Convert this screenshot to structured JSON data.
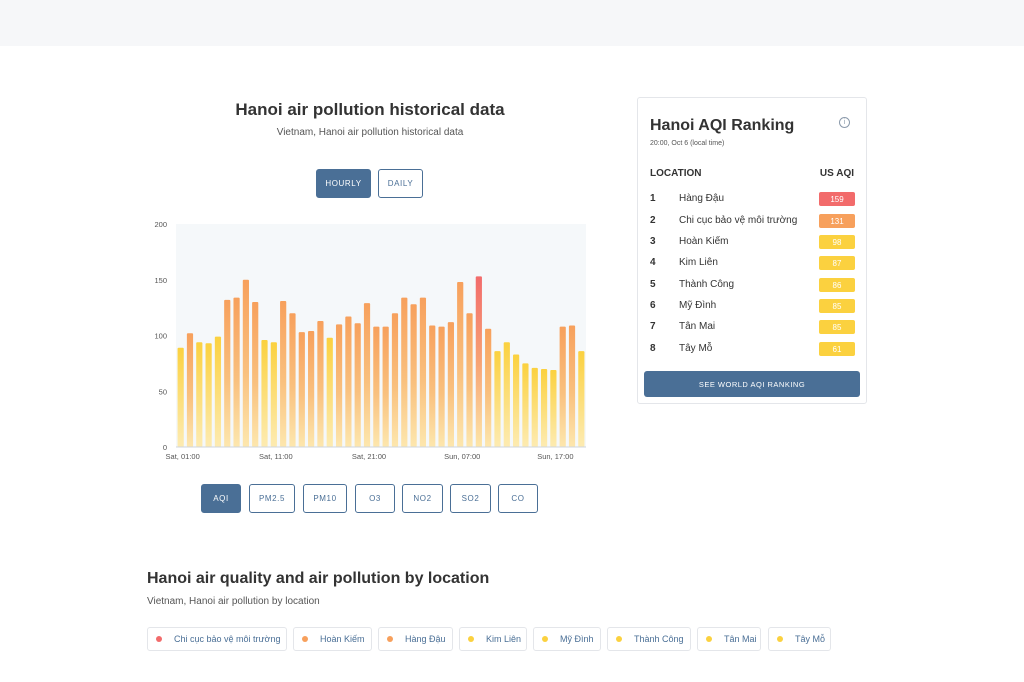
{
  "colors": {
    "accent": "#4a6f96",
    "unhealthy": "#f26b6b",
    "sensitive": "#f7a05c",
    "moderate": "#fbd13f"
  },
  "chart_section": {
    "title": "Hanoi air pollution historical data",
    "subtitle": "Vietnam, Hanoi air pollution historical data",
    "toggle": [
      "HOURLY",
      "DAILY"
    ],
    "pollutants": [
      "AQI",
      "PM2.5",
      "PM10",
      "O3",
      "NO2",
      "SO2",
      "CO"
    ]
  },
  "chart_data": {
    "type": "bar",
    "title": "",
    "xlabel": "",
    "ylabel": "",
    "ylim": [
      0,
      200
    ],
    "yticks": [
      0,
      50,
      100,
      150,
      200
    ],
    "xtick_labels": [
      "Sat, 01:00",
      "Sat, 11:00",
      "Sat, 21:00",
      "Sun, 07:00",
      "Sun, 17:00"
    ],
    "xtick_indices": [
      0,
      10,
      20,
      30,
      40
    ],
    "grid": false,
    "values": [
      89,
      102,
      94,
      93,
      99,
      132,
      134,
      150,
      130,
      96,
      94,
      131,
      120,
      103,
      104,
      113,
      98,
      110,
      117,
      111,
      129,
      108,
      108,
      120,
      134,
      128,
      134,
      109,
      108,
      112,
      148,
      120,
      153,
      106,
      86,
      94,
      83,
      75,
      71,
      70,
      69,
      108,
      109,
      86
    ]
  },
  "ranking": {
    "title": "Hanoi AQI Ranking",
    "time": "20:00, Oct 6 (local time)",
    "col_location": "LOCATION",
    "col_aqi": "US AQI",
    "rows": [
      {
        "rank": "1",
        "name": "Hàng Đậu",
        "aqi": "159",
        "color": "#f26b6b"
      },
      {
        "rank": "2",
        "name": "Chi cục bảo vệ môi trường",
        "aqi": "131",
        "color": "#f7a05c"
      },
      {
        "rank": "3",
        "name": "Hoàn Kiếm",
        "aqi": "98",
        "color": "#fbd13f"
      },
      {
        "rank": "4",
        "name": "Kim Liên",
        "aqi": "87",
        "color": "#fbd13f"
      },
      {
        "rank": "5",
        "name": "Thành Công",
        "aqi": "86",
        "color": "#fbd13f"
      },
      {
        "rank": "6",
        "name": "Mỹ Đình",
        "aqi": "85",
        "color": "#fbd13f"
      },
      {
        "rank": "7",
        "name": "Tân Mai",
        "aqi": "85",
        "color": "#fbd13f"
      },
      {
        "rank": "8",
        "name": "Tây Mỗ",
        "aqi": "61",
        "color": "#fbd13f"
      }
    ],
    "button": "SEE WORLD AQI RANKING"
  },
  "locations": {
    "title": "Hanoi air quality and air pollution by location",
    "subtitle": "Vietnam, Hanoi air pollution by location",
    "chips": [
      {
        "label": "Chi cục bảo vệ môi trường",
        "color": "#f26b6b"
      },
      {
        "label": "Hoàn Kiếm",
        "color": "#f7a05c"
      },
      {
        "label": "Hàng Đậu",
        "color": "#f7a05c"
      },
      {
        "label": "Kim Liên",
        "color": "#fbd13f"
      },
      {
        "label": "Mỹ Đình",
        "color": "#fbd13f"
      },
      {
        "label": "Thành Công",
        "color": "#fbd13f"
      },
      {
        "label": "Tân Mai",
        "color": "#fbd13f"
      },
      {
        "label": "Tây Mỗ",
        "color": "#fbd13f"
      }
    ]
  }
}
